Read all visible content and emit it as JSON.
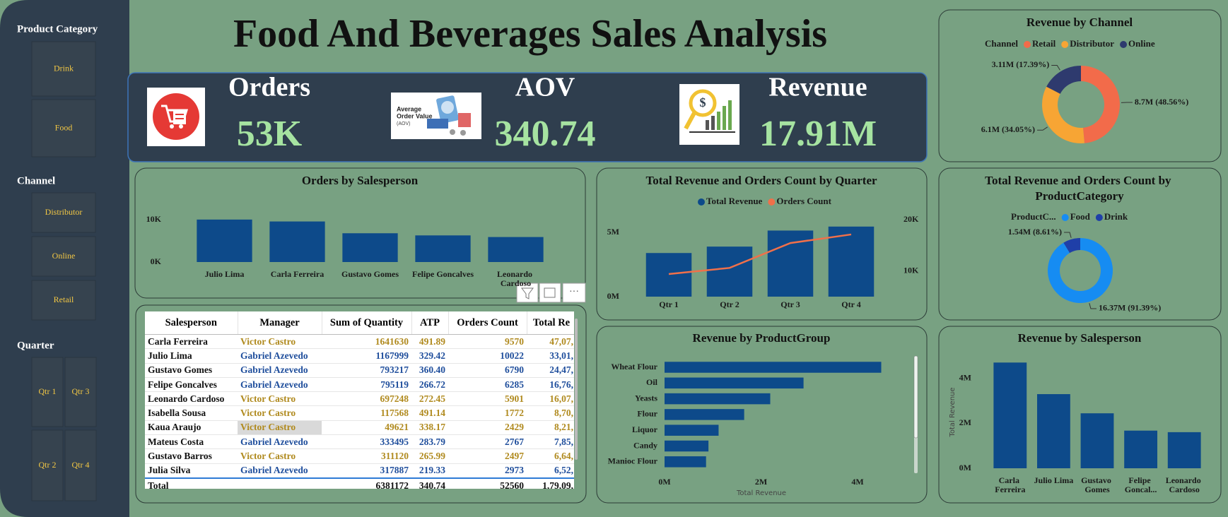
{
  "title": "Food And Beverages Sales Analysis",
  "slicers": [
    {
      "title": "Product Category",
      "items": [
        "Drink",
        "Food"
      ]
    },
    {
      "title": "Channel",
      "items": [
        "Distributor",
        "Online",
        "Retail"
      ]
    },
    {
      "title": "Quarter",
      "items": [
        "Qtr 1",
        "Qtr 3",
        "Qtr 2",
        "Qtr 4"
      ]
    }
  ],
  "kpis": [
    {
      "label": "Orders",
      "value": "53K"
    },
    {
      "label": "AOV",
      "value": "340.74",
      "icon_text": [
        "Average",
        "Order Value",
        "(AOV)"
      ]
    },
    {
      "label": "Revenue",
      "value": "17.91M"
    }
  ],
  "chart_data": [
    {
      "type": "bar",
      "title": "Orders by Salesperson",
      "categories": [
        "Julio Lima",
        "Carla Ferreira",
        "Gustavo Gomes",
        "Felipe Goncalves",
        "Leonardo Cardoso"
      ],
      "values": [
        10022,
        9570,
        6790,
        6285,
        5901
      ],
      "color": "#0d4a8a",
      "ylim": [
        0,
        10500
      ],
      "yticks": [
        {
          "value": 0,
          "label": "0K"
        },
        {
          "value": 10000,
          "label": "10K"
        }
      ]
    },
    {
      "type": "combo",
      "title": "Total Revenue and Orders Count by Quarter",
      "categories": [
        "Qtr 1",
        "Qtr 2",
        "Qtr 3",
        "Qtr 4"
      ],
      "series": [
        {
          "name": "Total Revenue",
          "color": "#0d4a8a",
          "values": [
            3400000,
            3900000,
            5150000,
            5460000
          ]
        },
        {
          "name": "Orders Count",
          "color": "#f0704a",
          "axis": "y2",
          "values": [
            9400,
            10600,
            15440,
            17120
          ]
        }
      ],
      "ylim": [
        0,
        6000000
      ],
      "yticks": [
        {
          "value": 0,
          "label": "0M"
        },
        {
          "value": 5000000,
          "label": "5M"
        }
      ],
      "y2lim": [
        5000,
        20000
      ],
      "y2ticks": [
        {
          "value": 10000,
          "label": "10K"
        },
        {
          "value": 20000,
          "label": "20K"
        }
      ]
    },
    {
      "type": "donut",
      "title": "Revenue by Channel",
      "legend_title": "Channel",
      "categories": [
        "Retail",
        "Distributor",
        "Online"
      ],
      "values": [
        48.56,
        34.05,
        17.39
      ],
      "value_labels": [
        "8.7M (48.56%)",
        "6.1M (34.05%)",
        "3.11M (17.39%)"
      ],
      "colors": [
        "#f26b4a",
        "#f7a534",
        "#2e3a6e"
      ]
    },
    {
      "type": "donut",
      "title": "Total Revenue and Orders Count by ProductCategory",
      "legend_title": "ProductC...",
      "categories": [
        "Food",
        "Drink"
      ],
      "values": [
        91.39,
        8.61
      ],
      "value_labels": [
        "16.37M (91.39%)",
        "1.54M (8.61%)"
      ],
      "colors": [
        "#168cf2",
        "#1f3fa8"
      ]
    },
    {
      "type": "hbar",
      "title": "Revenue by ProductGroup",
      "categories": [
        "Wheat Flour",
        "Oil",
        "Yeasts",
        "Flour",
        "Liquor",
        "Candy",
        "Manioc Flour"
      ],
      "values": [
        4490000,
        2880000,
        2190000,
        1650000,
        1120000,
        910000,
        860000
      ],
      "color": "#0d4a8a",
      "xlim": [
        0,
        4600000
      ],
      "xticks": [
        {
          "value": 0,
          "label": "0M"
        },
        {
          "value": 2000000,
          "label": "2M"
        },
        {
          "value": 4000000,
          "label": "4M"
        }
      ],
      "xlabel": "Total Revenue"
    },
    {
      "type": "bar",
      "title": "Revenue by Salesperson",
      "categories": [
        "Carla Ferreira",
        "Julio Lima",
        "Gustavo Gomes",
        "Felipe Goncal...",
        "Leonardo Cardoso"
      ],
      "values": [
        4707000,
        3301000,
        2447000,
        1676000,
        1607000
      ],
      "color": "#0d4a8a",
      "ylim": [
        0,
        5000000
      ],
      "yticks": [
        {
          "value": 0,
          "label": "0M"
        },
        {
          "value": 2000000,
          "label": "2M"
        },
        {
          "value": 4000000,
          "label": "4M"
        }
      ],
      "ylabel": "Total Revenue"
    }
  ],
  "table": {
    "columns": [
      "Salesperson",
      "Manager",
      "Sum of Quantity",
      "ATP",
      "Orders Count",
      "Total Re"
    ],
    "rows": [
      [
        "Carla Ferreira",
        "Victor Castro",
        "1641630",
        "491.89",
        "9570",
        "47,07,"
      ],
      [
        "Julio Lima",
        "Gabriel Azevedo",
        "1167999",
        "329.42",
        "10022",
        "33,01,"
      ],
      [
        "Gustavo Gomes",
        "Gabriel Azevedo",
        "793217",
        "360.40",
        "6790",
        "24,47,"
      ],
      [
        "Felipe Goncalves",
        "Gabriel Azevedo",
        "795119",
        "266.72",
        "6285",
        "16,76,"
      ],
      [
        "Leonardo Cardoso",
        "Victor Castro",
        "697248",
        "272.45",
        "5901",
        "16,07,"
      ],
      [
        "Isabella Sousa",
        "Victor Castro",
        "117568",
        "491.14",
        "1772",
        "8,70,"
      ],
      [
        "Kaua Araujo",
        "Victor Castro",
        "49621",
        "338.17",
        "2429",
        "8,21,"
      ],
      [
        "Mateus Costa",
        "Gabriel Azevedo",
        "333495",
        "283.79",
        "2767",
        "7,85,"
      ],
      [
        "Gustavo Barros",
        "Victor Castro",
        "311120",
        "265.99",
        "2497",
        "6,64,"
      ],
      [
        "Julia Silva",
        "Gabriel Azevedo",
        "317887",
        "219.33",
        "2973",
        "6,52,"
      ]
    ],
    "total": [
      "Total",
      null,
      "6381172",
      "340.74",
      "52560",
      "1,79,09,"
    ]
  }
}
